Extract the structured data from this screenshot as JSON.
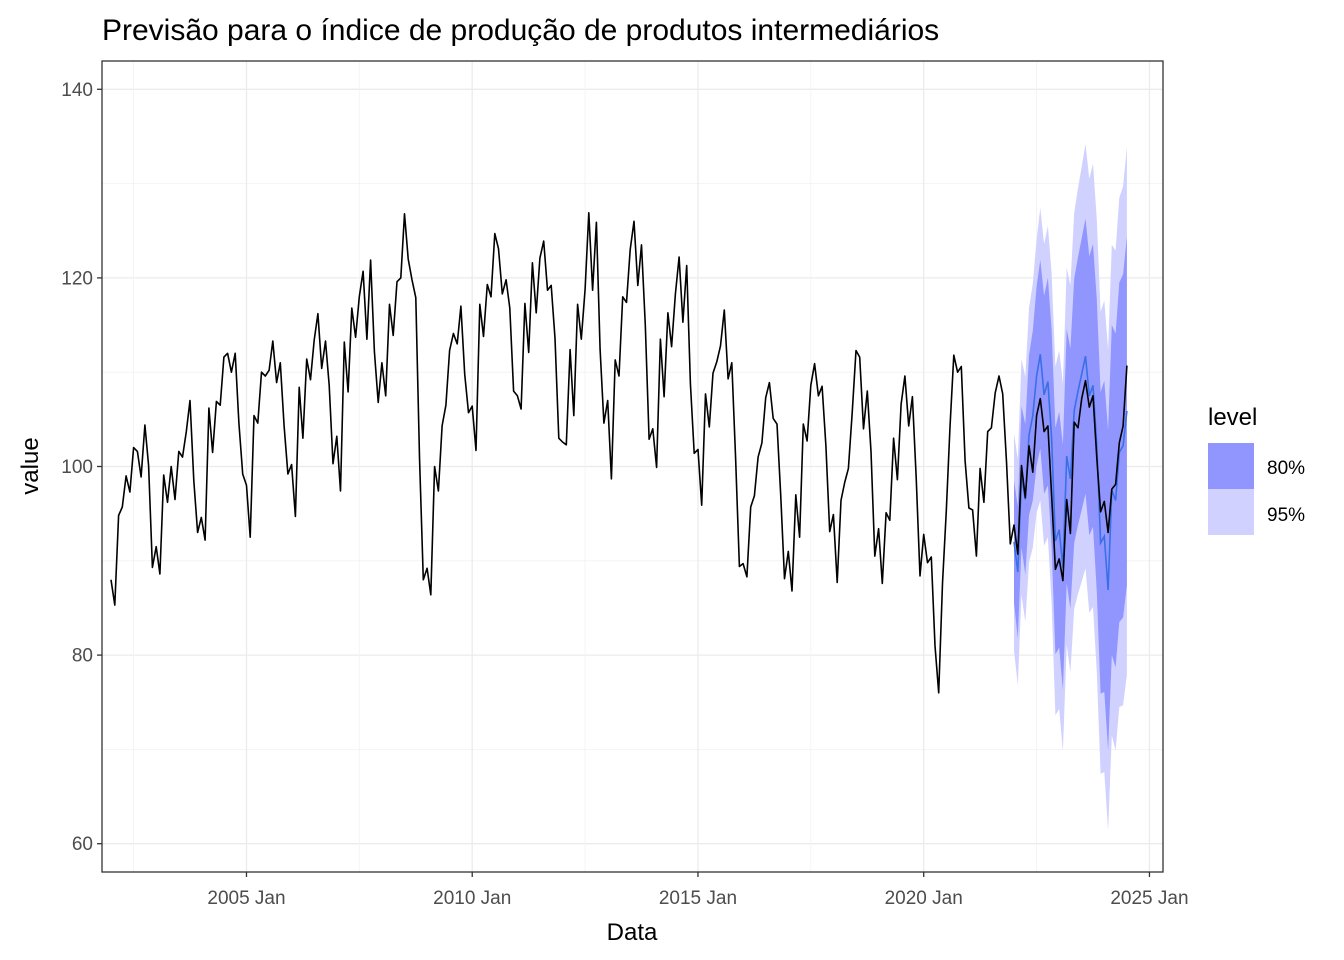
{
  "chart_data": {
    "type": "line",
    "title": "Previsão para o índice de produção de produtos intermediários",
    "xlabel": "Data",
    "ylabel": "value",
    "xlim": [
      2001.8,
      2025.3
    ],
    "ylim": [
      57,
      143
    ],
    "x_ticks": [
      {
        "value": 2005,
        "label": "2005 Jan"
      },
      {
        "value": 2010,
        "label": "2010 Jan"
      },
      {
        "value": 2015,
        "label": "2015 Jan"
      },
      {
        "value": 2020,
        "label": "2020 Jan"
      },
      {
        "value": 2025,
        "label": "2025 Jan"
      }
    ],
    "y_ticks": [
      60,
      80,
      100,
      120,
      140
    ],
    "grid": true,
    "legend": {
      "title": "level",
      "position": "right",
      "items": [
        {
          "label": "80%",
          "color": "#9196ff"
        },
        {
          "label": "95%",
          "color": "#d0d1ff"
        }
      ]
    },
    "colors": {
      "observed": "#000000",
      "forecast": "#3b6fe6",
      "band80": "#9196ff",
      "band95": "#d0d1ff"
    },
    "observed": {
      "name": "",
      "points": [
        [
          2002.0,
          88.0
        ],
        [
          2002.083,
          85.3
        ],
        [
          2002.167,
          94.8
        ],
        [
          2002.25,
          95.7
        ],
        [
          2002.333,
          99.0
        ],
        [
          2002.417,
          97.3
        ],
        [
          2002.5,
          102.0
        ],
        [
          2002.583,
          101.6
        ],
        [
          2002.667,
          98.9
        ],
        [
          2002.75,
          104.4
        ],
        [
          2002.833,
          100.1
        ],
        [
          2002.917,
          89.3
        ],
        [
          2003.0,
          91.5
        ],
        [
          2003.083,
          88.6
        ],
        [
          2003.167,
          99.1
        ],
        [
          2003.25,
          96.2
        ],
        [
          2003.333,
          100.0
        ],
        [
          2003.417,
          96.5
        ],
        [
          2003.5,
          101.6
        ],
        [
          2003.583,
          101.0
        ],
        [
          2003.667,
          103.7
        ],
        [
          2003.75,
          107.0
        ],
        [
          2003.833,
          98.5
        ],
        [
          2003.917,
          93.0
        ],
        [
          2004.0,
          94.6
        ],
        [
          2004.083,
          92.2
        ],
        [
          2004.167,
          106.2
        ],
        [
          2004.25,
          101.5
        ],
        [
          2004.333,
          106.9
        ],
        [
          2004.417,
          106.5
        ],
        [
          2004.5,
          111.6
        ],
        [
          2004.583,
          112.0
        ],
        [
          2004.667,
          110.0
        ],
        [
          2004.75,
          112.0
        ],
        [
          2004.833,
          104.6
        ],
        [
          2004.917,
          99.2
        ],
        [
          2005.0,
          98.0
        ],
        [
          2005.083,
          92.5
        ],
        [
          2005.167,
          105.4
        ],
        [
          2005.25,
          104.6
        ],
        [
          2005.333,
          110.0
        ],
        [
          2005.417,
          109.6
        ],
        [
          2005.5,
          110.2
        ],
        [
          2005.583,
          113.3
        ],
        [
          2005.667,
          108.9
        ],
        [
          2005.75,
          111.0
        ],
        [
          2005.833,
          104.3
        ],
        [
          2005.917,
          99.2
        ],
        [
          2006.0,
          100.2
        ],
        [
          2006.083,
          94.7
        ],
        [
          2006.167,
          108.4
        ],
        [
          2006.25,
          103.0
        ],
        [
          2006.333,
          111.4
        ],
        [
          2006.417,
          109.2
        ],
        [
          2006.5,
          113.4
        ],
        [
          2006.583,
          116.2
        ],
        [
          2006.667,
          110.4
        ],
        [
          2006.75,
          113.3
        ],
        [
          2006.833,
          108.6
        ],
        [
          2006.917,
          100.3
        ],
        [
          2007.0,
          103.2
        ],
        [
          2007.083,
          97.4
        ],
        [
          2007.167,
          113.2
        ],
        [
          2007.25,
          107.9
        ],
        [
          2007.333,
          116.8
        ],
        [
          2007.417,
          113.7
        ],
        [
          2007.5,
          118.0
        ],
        [
          2007.583,
          120.7
        ],
        [
          2007.667,
          113.5
        ],
        [
          2007.75,
          121.9
        ],
        [
          2007.833,
          112.2
        ],
        [
          2007.917,
          106.8
        ],
        [
          2008.0,
          111.0
        ],
        [
          2008.083,
          107.5
        ],
        [
          2008.167,
          117.2
        ],
        [
          2008.25,
          113.9
        ],
        [
          2008.333,
          119.6
        ],
        [
          2008.417,
          120.0
        ],
        [
          2008.5,
          126.8
        ],
        [
          2008.583,
          122.0
        ],
        [
          2008.667,
          119.8
        ],
        [
          2008.75,
          117.9
        ],
        [
          2008.833,
          101.0
        ],
        [
          2008.917,
          88.0
        ],
        [
          2009.0,
          89.2
        ],
        [
          2009.083,
          86.4
        ],
        [
          2009.167,
          100.0
        ],
        [
          2009.25,
          97.4
        ],
        [
          2009.333,
          104.3
        ],
        [
          2009.417,
          106.5
        ],
        [
          2009.5,
          112.3
        ],
        [
          2009.583,
          114.1
        ],
        [
          2009.667,
          113.0
        ],
        [
          2009.75,
          117.0
        ],
        [
          2009.833,
          109.8
        ],
        [
          2009.917,
          105.7
        ],
        [
          2010.0,
          106.4
        ],
        [
          2010.083,
          101.7
        ],
        [
          2010.167,
          117.2
        ],
        [
          2010.25,
          113.8
        ],
        [
          2010.333,
          119.3
        ],
        [
          2010.417,
          118.0
        ],
        [
          2010.5,
          124.7
        ],
        [
          2010.583,
          123.1
        ],
        [
          2010.667,
          118.3
        ],
        [
          2010.75,
          119.8
        ],
        [
          2010.833,
          116.8
        ],
        [
          2010.917,
          108.0
        ],
        [
          2011.0,
          107.5
        ],
        [
          2011.083,
          106.1
        ],
        [
          2011.167,
          117.3
        ],
        [
          2011.25,
          112.1
        ],
        [
          2011.333,
          121.6
        ],
        [
          2011.417,
          116.3
        ],
        [
          2011.5,
          122.1
        ],
        [
          2011.583,
          123.9
        ],
        [
          2011.667,
          118.7
        ],
        [
          2011.75,
          119.2
        ],
        [
          2011.833,
          113.6
        ],
        [
          2011.917,
          103.0
        ],
        [
          2012.0,
          102.6
        ],
        [
          2012.083,
          102.3
        ],
        [
          2012.167,
          112.4
        ],
        [
          2012.25,
          105.4
        ],
        [
          2012.333,
          117.2
        ],
        [
          2012.417,
          113.5
        ],
        [
          2012.5,
          118.8
        ],
        [
          2012.583,
          126.9
        ],
        [
          2012.667,
          118.7
        ],
        [
          2012.75,
          125.9
        ],
        [
          2012.833,
          112.4
        ],
        [
          2012.917,
          104.6
        ],
        [
          2013.0,
          107.0
        ],
        [
          2013.083,
          98.7
        ],
        [
          2013.167,
          111.3
        ],
        [
          2013.25,
          109.6
        ],
        [
          2013.333,
          118.0
        ],
        [
          2013.417,
          117.4
        ],
        [
          2013.5,
          123.0
        ],
        [
          2013.583,
          126.0
        ],
        [
          2013.667,
          119.2
        ],
        [
          2013.75,
          123.5
        ],
        [
          2013.833,
          115.0
        ],
        [
          2013.917,
          102.9
        ],
        [
          2014.0,
          104.0
        ],
        [
          2014.083,
          99.9
        ],
        [
          2014.167,
          113.5
        ],
        [
          2014.25,
          107.4
        ],
        [
          2014.333,
          116.3
        ],
        [
          2014.417,
          112.7
        ],
        [
          2014.5,
          118.3
        ],
        [
          2014.583,
          122.2
        ],
        [
          2014.667,
          115.3
        ],
        [
          2014.75,
          121.3
        ],
        [
          2014.833,
          108.8
        ],
        [
          2014.917,
          101.4
        ],
        [
          2015.0,
          101.8
        ],
        [
          2015.083,
          95.9
        ],
        [
          2015.167,
          107.7
        ],
        [
          2015.25,
          104.2
        ],
        [
          2015.333,
          109.9
        ],
        [
          2015.417,
          111.1
        ],
        [
          2015.5,
          112.8
        ],
        [
          2015.583,
          116.6
        ],
        [
          2015.667,
          109.3
        ],
        [
          2015.75,
          111.0
        ],
        [
          2015.833,
          100.9
        ],
        [
          2015.917,
          89.4
        ],
        [
          2016.0,
          89.7
        ],
        [
          2016.083,
          88.3
        ],
        [
          2016.167,
          95.7
        ],
        [
          2016.25,
          96.9
        ],
        [
          2016.333,
          101.0
        ],
        [
          2016.417,
          102.5
        ],
        [
          2016.5,
          107.3
        ],
        [
          2016.583,
          108.9
        ],
        [
          2016.667,
          105.1
        ],
        [
          2016.75,
          104.5
        ],
        [
          2016.833,
          97.0
        ],
        [
          2016.917,
          88.1
        ],
        [
          2017.0,
          91.0
        ],
        [
          2017.083,
          86.8
        ],
        [
          2017.167,
          97.0
        ],
        [
          2017.25,
          92.5
        ],
        [
          2017.333,
          104.5
        ],
        [
          2017.417,
          102.7
        ],
        [
          2017.5,
          108.6
        ],
        [
          2017.583,
          110.9
        ],
        [
          2017.667,
          107.5
        ],
        [
          2017.75,
          108.5
        ],
        [
          2017.833,
          102.2
        ],
        [
          2017.917,
          93.1
        ],
        [
          2018.0,
          94.9
        ],
        [
          2018.083,
          87.7
        ],
        [
          2018.167,
          96.4
        ],
        [
          2018.25,
          98.3
        ],
        [
          2018.333,
          99.8
        ],
        [
          2018.417,
          105.7
        ],
        [
          2018.5,
          112.3
        ],
        [
          2018.583,
          111.6
        ],
        [
          2018.667,
          104.0
        ],
        [
          2018.75,
          108.0
        ],
        [
          2018.833,
          101.6
        ],
        [
          2018.917,
          90.5
        ],
        [
          2019.0,
          93.4
        ],
        [
          2019.083,
          87.6
        ],
        [
          2019.167,
          95.1
        ],
        [
          2019.25,
          94.3
        ],
        [
          2019.333,
          103.0
        ],
        [
          2019.417,
          98.6
        ],
        [
          2019.5,
          106.6
        ],
        [
          2019.583,
          109.6
        ],
        [
          2019.667,
          104.3
        ],
        [
          2019.75,
          107.4
        ],
        [
          2019.833,
          98.8
        ],
        [
          2019.917,
          88.4
        ],
        [
          2020.0,
          92.8
        ],
        [
          2020.083,
          89.8
        ],
        [
          2020.167,
          90.4
        ],
        [
          2020.25,
          81.0
        ],
        [
          2020.333,
          76.0
        ],
        [
          2020.417,
          87.6
        ],
        [
          2020.5,
          95.3
        ],
        [
          2020.583,
          104.2
        ],
        [
          2020.667,
          111.8
        ],
        [
          2020.75,
          110.0
        ],
        [
          2020.833,
          110.6
        ],
        [
          2020.917,
          100.6
        ],
        [
          2021.0,
          95.6
        ],
        [
          2021.083,
          95.4
        ],
        [
          2021.167,
          90.5
        ],
        [
          2021.25,
          99.8
        ],
        [
          2021.333,
          96.2
        ],
        [
          2021.417,
          103.7
        ],
        [
          2021.5,
          104.1
        ],
        [
          2021.583,
          107.8
        ],
        [
          2021.667,
          109.6
        ],
        [
          2021.75,
          107.7
        ],
        [
          2021.833,
          100.5
        ],
        [
          2021.917,
          91.8
        ],
        [
          2022.0,
          93.8
        ],
        [
          2022.083,
          90.7
        ],
        [
          2022.167,
          100.1
        ],
        [
          2022.25,
          96.7
        ],
        [
          2022.333,
          102.2
        ],
        [
          2022.417,
          99.4
        ],
        [
          2022.5,
          105.4
        ],
        [
          2022.583,
          107.2
        ],
        [
          2022.667,
          103.7
        ],
        [
          2022.75,
          104.3
        ],
        [
          2022.833,
          97.0
        ],
        [
          2022.917,
          89.1
        ],
        [
          2023.0,
          90.2
        ],
        [
          2023.083,
          87.9
        ],
        [
          2023.167,
          96.5
        ],
        [
          2023.25,
          92.9
        ],
        [
          2023.333,
          104.7
        ],
        [
          2023.417,
          104.1
        ],
        [
          2023.5,
          107.2
        ],
        [
          2023.583,
          109.1
        ],
        [
          2023.667,
          106.3
        ],
        [
          2023.75,
          107.5
        ],
        [
          2023.833,
          100.9
        ],
        [
          2023.917,
          95.2
        ],
        [
          2024.0,
          96.3
        ],
        [
          2024.083,
          93.0
        ],
        [
          2024.167,
          97.6
        ],
        [
          2024.25,
          98.1
        ],
        [
          2024.333,
          102.5
        ],
        [
          2024.417,
          104.3
        ],
        [
          2024.5,
          110.7
        ]
      ]
    },
    "forecast": {
      "name": "",
      "points": [
        [
          2022.0,
          92.0,
          6.5,
          11.5
        ],
        [
          2022.083,
          88.8,
          7.0,
          12.0
        ],
        [
          2022.167,
          98.9,
          7.5,
          12.5
        ],
        [
          2022.25,
          96.5,
          8.0,
          13.0
        ],
        [
          2022.333,
          103.3,
          8.5,
          13.5
        ],
        [
          2022.417,
          105.4,
          9.0,
          14.0
        ],
        [
          2022.5,
          109.6,
          9.5,
          14.5
        ],
        [
          2022.583,
          111.9,
          10.0,
          15.5
        ],
        [
          2022.667,
          107.6,
          10.5,
          16.0
        ],
        [
          2022.75,
          109.0,
          11.0,
          16.5
        ],
        [
          2022.833,
          103.0,
          11.5,
          17.5
        ],
        [
          2022.917,
          92.1,
          12.0,
          18.5
        ],
        [
          2023.0,
          93.3,
          12.5,
          19.0
        ],
        [
          2023.083,
          89.3,
          13.0,
          19.5
        ],
        [
          2023.167,
          101.1,
          13.5,
          20.0
        ],
        [
          2023.25,
          98.7,
          13.8,
          20.5
        ],
        [
          2023.333,
          105.9,
          14.0,
          21.0
        ],
        [
          2023.417,
          108.0,
          14.2,
          21.5
        ],
        [
          2023.5,
          109.8,
          14.4,
          22.0
        ],
        [
          2023.583,
          111.7,
          14.6,
          22.5
        ],
        [
          2023.667,
          107.5,
          14.8,
          23.0
        ],
        [
          2023.75,
          108.6,
          15.0,
          23.5
        ],
        [
          2023.833,
          102.2,
          15.5,
          24.0
        ],
        [
          2023.917,
          91.9,
          16.0,
          24.5
        ],
        [
          2024.0,
          92.6,
          16.5,
          25.0
        ],
        [
          2024.083,
          86.9,
          17.0,
          25.5
        ],
        [
          2024.167,
          97.5,
          17.5,
          26.0
        ],
        [
          2024.25,
          96.4,
          17.7,
          26.5
        ],
        [
          2024.333,
          101.5,
          18.0,
          27.0
        ],
        [
          2024.417,
          102.2,
          18.2,
          27.5
        ],
        [
          2024.5,
          105.9,
          18.5,
          28.0
        ]
      ]
    }
  }
}
